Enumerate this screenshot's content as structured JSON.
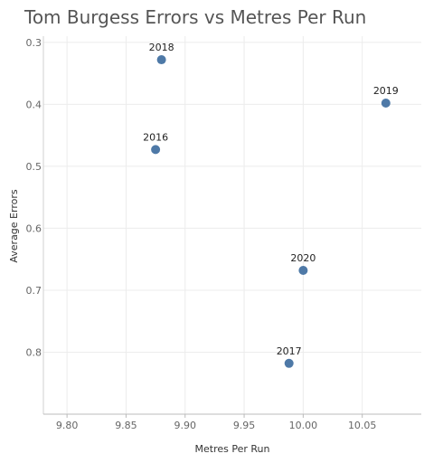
{
  "chart_data": {
    "type": "scatter",
    "title": "Tom Burgess Errors vs Metres Per Run",
    "xlabel": "Metres Per Run",
    "ylabel": "Average Errors",
    "xlim": [
      9.78,
      10.1
    ],
    "ylim": [
      0.29,
      0.9
    ],
    "y_reversed": true,
    "grid": true,
    "xticks": [
      "9.80",
      "9.85",
      "9.90",
      "9.95",
      "10.00",
      "10.05"
    ],
    "yticks": [
      "0.3",
      "0.4",
      "0.5",
      "0.6",
      "0.7",
      "0.8"
    ],
    "point_color": "#4e79a7",
    "points": [
      {
        "label": "2016",
        "x": 9.875,
        "y": 0.473
      },
      {
        "label": "2017",
        "x": 9.988,
        "y": 0.818
      },
      {
        "label": "2018",
        "x": 9.88,
        "y": 0.328
      },
      {
        "label": "2019",
        "x": 10.07,
        "y": 0.398
      },
      {
        "label": "2020",
        "x": 10.0,
        "y": 0.668
      }
    ]
  }
}
